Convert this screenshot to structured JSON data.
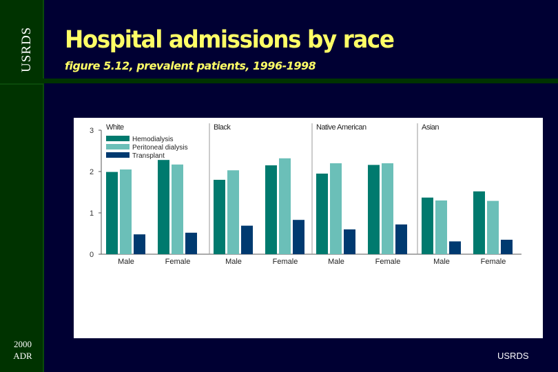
{
  "slide": {
    "brand_vertical": "USRDS",
    "edition_line1": "2000",
    "edition_line2": "ADR",
    "title": "Hospital admissions by race",
    "subtitle": "figure 5.12, prevalent patients, 1996-1998",
    "footer": "USRDS"
  },
  "colors": {
    "background": "#000033",
    "sidebar": "#003300",
    "title_text": "#ffff66",
    "hemodialysis": "#007a6e",
    "peritoneal": "#6bbfb8",
    "transplant": "#003a70"
  },
  "chart_data": {
    "type": "bar",
    "ylim": [
      0,
      3
    ],
    "yticks": [
      "0",
      "1",
      "2",
      "3"
    ],
    "legend_placement": "top-left",
    "legend": [
      "Hemodialysis",
      "Peritoneal dialysis",
      "Transplant"
    ],
    "panels": [
      {
        "label": "White",
        "groups": [
          {
            "label": "Male",
            "values": [
              1.99,
              2.05,
              0.48
            ]
          },
          {
            "label": "Female",
            "values": [
              2.28,
              2.17,
              0.52
            ]
          }
        ]
      },
      {
        "label": "Black",
        "groups": [
          {
            "label": "Male",
            "values": [
              1.8,
              2.03,
              0.69
            ]
          },
          {
            "label": "Female",
            "values": [
              2.15,
              2.32,
              0.83
            ]
          }
        ]
      },
      {
        "label": "Native American",
        "groups": [
          {
            "label": "Male",
            "values": [
              1.95,
              2.2,
              0.6
            ]
          },
          {
            "label": "Female",
            "values": [
              2.16,
              2.2,
              0.72
            ]
          }
        ]
      },
      {
        "label": "Asian",
        "groups": [
          {
            "label": "Male",
            "values": [
              1.37,
              1.3,
              0.31
            ]
          },
          {
            "label": "Female",
            "values": [
              1.52,
              1.29,
              0.35
            ]
          }
        ]
      }
    ]
  }
}
